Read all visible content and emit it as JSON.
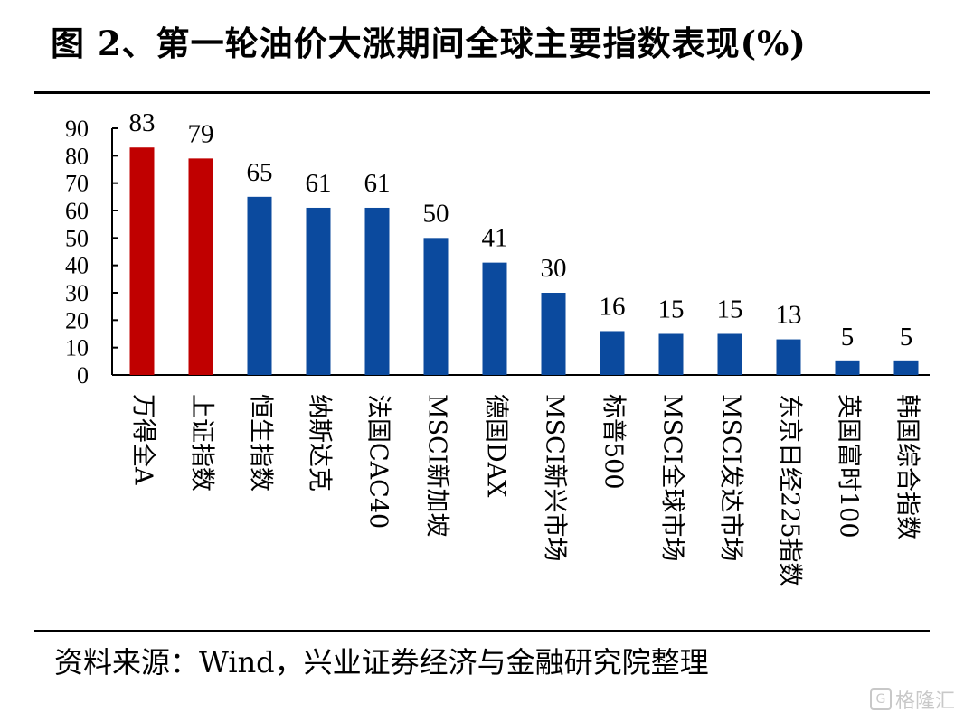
{
  "title": "图 2、第一轮油价大涨期间全球主要指数表现(%)",
  "source": "资料来源：Wind，兴业证券经济与金融研究院整理",
  "watermark": "格隆汇",
  "colors": {
    "highlight": "#C00000",
    "normal": "#0B4A9E"
  },
  "chart_data": {
    "type": "bar",
    "categories": [
      "万得全A",
      "上证指数",
      "恒生指数",
      "纳斯达克",
      "法国CAC40",
      "MSCI新加坡",
      "德国DAX",
      "MSCI新兴市场",
      "标普500",
      "MSCI全球市场",
      "MSCI发达市场",
      "东京日经225指数",
      "英国富时100",
      "韩国综合指数"
    ],
    "values": [
      83,
      79,
      65,
      61,
      61,
      50,
      41,
      30,
      16,
      15,
      15,
      13,
      5,
      5
    ],
    "data_labels": [
      "83",
      "79",
      "65",
      "61",
      "61",
      "50",
      "41",
      "30",
      "16",
      "15",
      "15",
      "13",
      "5",
      "5"
    ],
    "bar_colors": [
      "highlight",
      "highlight",
      "normal",
      "normal",
      "normal",
      "normal",
      "normal",
      "normal",
      "normal",
      "normal",
      "normal",
      "normal",
      "normal",
      "normal"
    ],
    "ylim": [
      0,
      90
    ],
    "yticks": [
      0,
      10,
      20,
      30,
      40,
      50,
      60,
      70,
      80,
      90
    ],
    "xlabel": "",
    "ylabel": "",
    "grid": false,
    "legend": "none"
  }
}
